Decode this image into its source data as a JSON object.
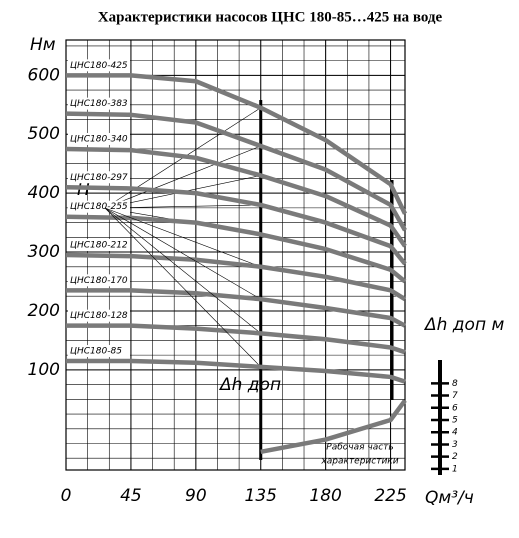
{
  "chart_data": {
    "type": "line",
    "title": "Характеристики насосов ЦНС 180-85…425 на воде",
    "y_label": "Нм",
    "x_label": "Qм³/ч",
    "y2_label": "Δh доп м",
    "x": [
      0,
      45,
      90,
      135,
      180,
      225,
      235
    ],
    "xlim": [
      0,
      235
    ],
    "xticks": [
      0,
      45,
      90,
      135,
      180,
      225
    ],
    "ylim": [
      -70,
      660
    ],
    "yticks": [
      100,
      200,
      300,
      400,
      500,
      600
    ],
    "y2lim": [
      0.5,
      9.5
    ],
    "y2ticks": [
      1,
      2,
      3,
      4,
      5,
      6,
      7,
      8
    ],
    "grid": true,
    "head_label": "H",
    "working_range": [
      135,
      226
    ],
    "annotations": [
      "Рабочая часть",
      "характеристики"
    ],
    "series": [
      {
        "name": "ЦНС180-425",
        "color": "#7a7a7a",
        "values": [
          600,
          600,
          590,
          545,
          490,
          415,
          365
        ]
      },
      {
        "name": "ЦНС180-383",
        "color": "#7a7a7a",
        "values": [
          535,
          533,
          520,
          480,
          440,
          380,
          337
        ]
      },
      {
        "name": "ЦНС180-340",
        "color": "#7a7a7a",
        "values": [
          475,
          473,
          460,
          430,
          395,
          345,
          310
        ]
      },
      {
        "name": "ЦНС180-297",
        "color": "#7a7a7a",
        "values": [
          410,
          408,
          400,
          380,
          350,
          310,
          280
        ]
      },
      {
        "name": "ЦНС180-255",
        "color": "#7a7a7a",
        "values": [
          360,
          358,
          350,
          330,
          305,
          270,
          250
        ]
      },
      {
        "name": "ЦНС180-212",
        "color": "#7a7a7a",
        "values": [
          295,
          293,
          287,
          275,
          258,
          235,
          220
        ]
      },
      {
        "name": "ЦНС180-170",
        "color": "#7a7a7a",
        "values": [
          235,
          235,
          230,
          220,
          205,
          188,
          175
        ]
      },
      {
        "name": "ЦНС180-128",
        "color": "#7a7a7a",
        "values": [
          175,
          175,
          170,
          162,
          152,
          138,
          130
        ]
      },
      {
        "name": "ЦНС180-85",
        "color": "#7a7a7a",
        "values": [
          115,
          115,
          112,
          105,
          98,
          88,
          80
        ]
      },
      {
        "name": "Δh доп",
        "color": "#7a7a7a",
        "axis": "y2",
        "values": [
          null,
          null,
          null,
          2.4,
          3.4,
          5.0,
          6.6
        ]
      }
    ]
  }
}
